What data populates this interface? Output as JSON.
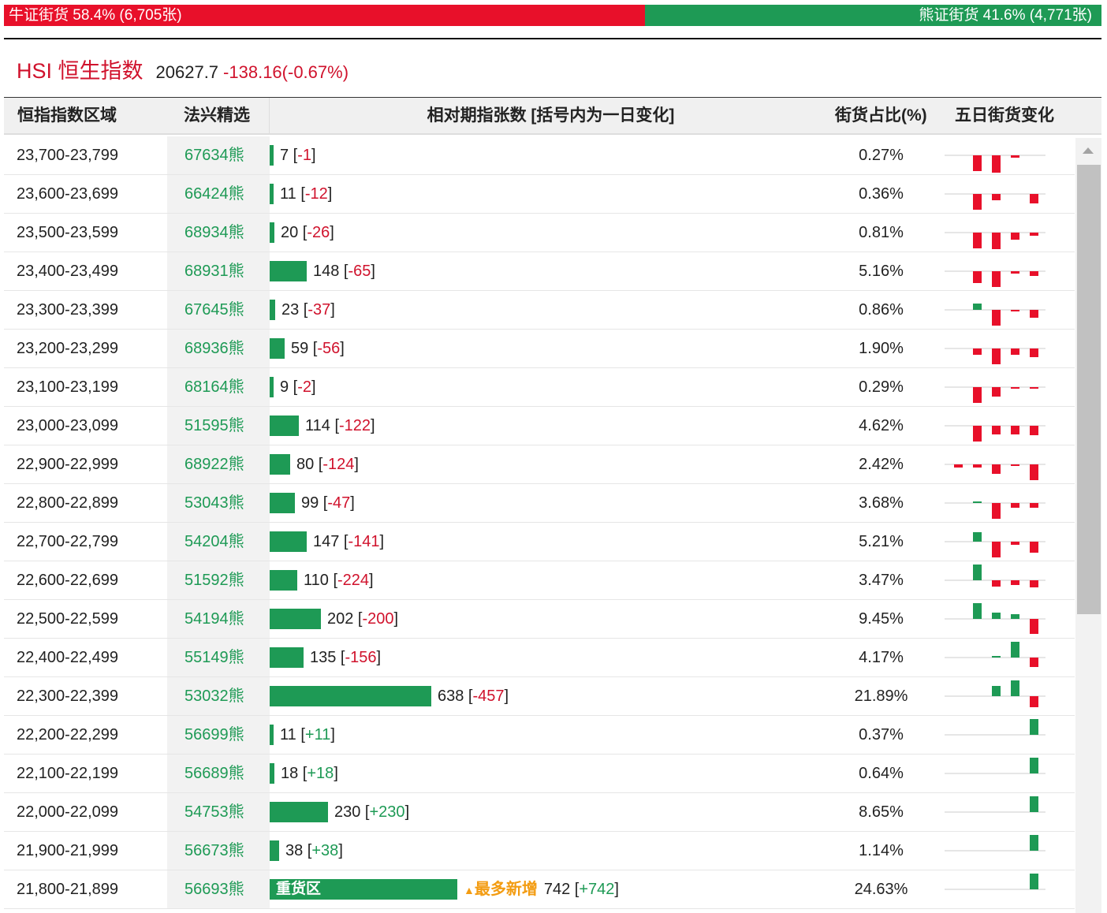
{
  "summary": {
    "bull_label": "牛证街货 58.4% (6,705张)",
    "bear_label": "熊证街货 41.6% (4,771张)",
    "bull_pct": 58.4,
    "bear_pct": 41.6
  },
  "index": {
    "name": "HSI 恒生指数",
    "value": "20627.7",
    "change": "-138.16(-0.67%)"
  },
  "columns": {
    "region": "恒指指数区域",
    "pick": "法兴精选",
    "relative": "相对期指张数 [括号内为一日变化]",
    "share": "街货占比(%)",
    "five_day": "五日街货变化"
  },
  "colors": {
    "up": "#1e9a55",
    "down": "#e8102a"
  },
  "rows": [
    {
      "range": "23,700-23,799",
      "code": "67634熊",
      "qty": 7,
      "qty_text": "7",
      "chg": "-1",
      "share": "0.27%",
      "five": [
        0,
        -0.9,
        -1,
        -0.15,
        0
      ]
    },
    {
      "range": "23,600-23,699",
      "code": "66424熊",
      "qty": 11,
      "qty_text": "11",
      "chg": "-12",
      "share": "0.36%",
      "five": [
        0,
        -0.9,
        -0.35,
        0,
        -0.55
      ]
    },
    {
      "range": "23,500-23,599",
      "code": "68934熊",
      "qty": 20,
      "qty_text": "20",
      "chg": "-26",
      "share": "0.81%",
      "five": [
        0,
        -0.9,
        -0.95,
        -0.4,
        -0.2
      ]
    },
    {
      "range": "23,400-23,499",
      "code": "68931熊",
      "qty": 148,
      "qty_text": "148",
      "chg": "-65",
      "share": "5.16%",
      "five": [
        0,
        -0.7,
        -0.9,
        -0.15,
        -0.25
      ]
    },
    {
      "range": "23,300-23,399",
      "code": "67645熊",
      "qty": 23,
      "qty_text": "23",
      "chg": "-37",
      "share": "0.86%",
      "five": [
        0,
        0.35,
        -0.9,
        -0.05,
        -0.45
      ]
    },
    {
      "range": "23,200-23,299",
      "code": "68936熊",
      "qty": 59,
      "qty_text": "59",
      "chg": "-56",
      "share": "1.90%",
      "five": [
        0,
        -0.35,
        -0.9,
        -0.35,
        -0.5
      ]
    },
    {
      "range": "23,100-23,199",
      "code": "68164熊",
      "qty": 9,
      "qty_text": "9",
      "chg": "-2",
      "share": "0.29%",
      "five": [
        0,
        -0.9,
        -0.55,
        -0.1,
        -0.05
      ]
    },
    {
      "range": "23,000-23,099",
      "code": "51595熊",
      "qty": 114,
      "qty_text": "114",
      "chg": "-122",
      "share": "4.62%",
      "five": [
        0,
        -0.9,
        -0.5,
        -0.5,
        -0.55
      ]
    },
    {
      "range": "22,900-22,999",
      "code": "68922熊",
      "qty": 80,
      "qty_text": "80",
      "chg": "-124",
      "share": "2.42%",
      "five": [
        -0.2,
        -0.2,
        -0.55,
        -0.1,
        -0.9
      ]
    },
    {
      "range": "22,800-22,899",
      "code": "53043熊",
      "qty": 99,
      "qty_text": "99",
      "chg": "-47",
      "share": "3.68%",
      "five": [
        0,
        0.05,
        -0.9,
        -0.25,
        -0.25
      ]
    },
    {
      "range": "22,700-22,799",
      "code": "54204熊",
      "qty": 147,
      "qty_text": "147",
      "chg": "-141",
      "share": "5.21%",
      "five": [
        0,
        0.55,
        -0.9,
        -0.2,
        -0.65
      ]
    },
    {
      "range": "22,600-22,699",
      "code": "51592熊",
      "qty": 110,
      "qty_text": "110",
      "chg": "-224",
      "share": "3.47%",
      "five": [
        0,
        0.9,
        -0.35,
        -0.25,
        -0.4
      ]
    },
    {
      "range": "22,500-22,599",
      "code": "54194熊",
      "qty": 202,
      "qty_text": "202",
      "chg": "-200",
      "share": "9.45%",
      "five": [
        0,
        0.9,
        0.35,
        0.25,
        -0.85
      ]
    },
    {
      "range": "22,400-22,499",
      "code": "55149熊",
      "qty": 135,
      "qty_text": "135",
      "chg": "-156",
      "share": "4.17%",
      "five": [
        0,
        0,
        0.05,
        0.9,
        -0.55
      ]
    },
    {
      "range": "22,300-22,399",
      "code": "53032熊",
      "qty": 638,
      "qty_text": "638",
      "chg": "-457",
      "share": "21.89%",
      "five": [
        0,
        0,
        0.6,
        0.9,
        -0.65
      ]
    },
    {
      "range": "22,200-22,299",
      "code": "56699熊",
      "qty": 11,
      "qty_text": "11",
      "chg": "+11",
      "share": "0.37%",
      "five": [
        0,
        0,
        0,
        0,
        0.9
      ]
    },
    {
      "range": "22,100-22,199",
      "code": "56689熊",
      "qty": 18,
      "qty_text": "18",
      "chg": "+18",
      "share": "0.64%",
      "five": [
        0,
        0,
        0,
        0,
        0.9
      ]
    },
    {
      "range": "22,000-22,099",
      "code": "54753熊",
      "qty": 230,
      "qty_text": "230",
      "chg": "+230",
      "share": "8.65%",
      "five": [
        0,
        0,
        0,
        0,
        0.9
      ]
    },
    {
      "range": "21,900-21,999",
      "code": "56673熊",
      "qty": 38,
      "qty_text": "38",
      "chg": "+38",
      "share": "1.14%",
      "five": [
        0,
        0,
        0,
        0,
        0.9
      ]
    },
    {
      "range": "21,800-21,899",
      "code": "56693熊",
      "qty": 742,
      "qty_text": "742",
      "chg": "+742",
      "share": "24.63%",
      "five": [
        0,
        0,
        0,
        0,
        0.9
      ],
      "bar_label": "重货区",
      "hint": "最多新增"
    }
  ]
}
